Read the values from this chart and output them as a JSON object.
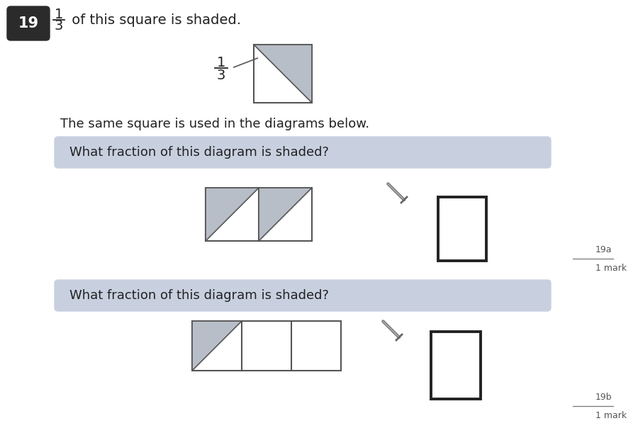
{
  "bg_color": "#ffffff",
  "question_num": "19",
  "question_num_bg": "#2b2b2b",
  "question_num_color": "#ffffff",
  "title_text": " of this square is shaded.",
  "subtitle": "The same square is used in the diagrams below.",
  "question_box_color": "#c8d0e0",
  "question_a_text": "What fraction of this diagram is shaded?",
  "question_b_text": "What fraction of this diagram is shaded?",
  "shade_color": "#b8bec8",
  "border_color": "#555555",
  "mark_label_a": "19a",
  "mark_label_b": "19b",
  "mark_text": "1 mark",
  "answer_box_border": "#222222",
  "text_color": "#222222"
}
